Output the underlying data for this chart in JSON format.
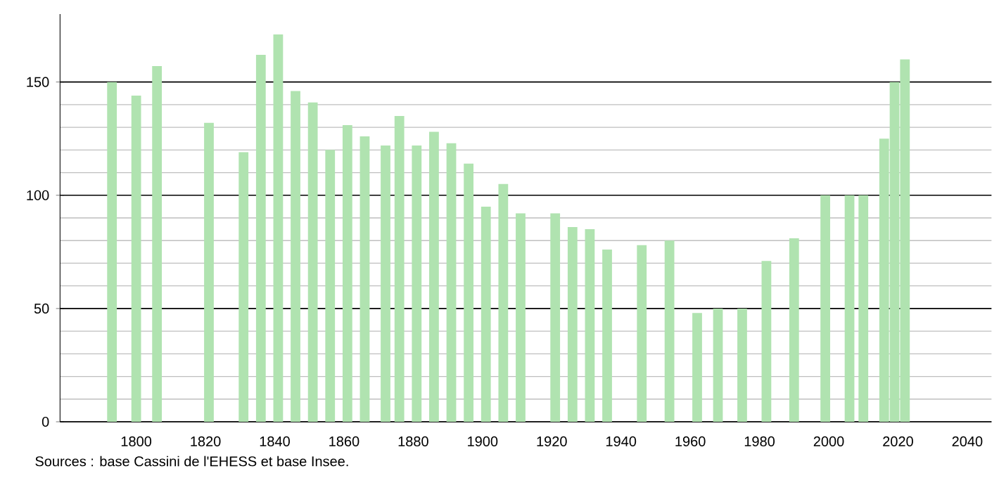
{
  "chart_data": {
    "type": "bar",
    "x": [
      1793,
      1800,
      1806,
      1821,
      1831,
      1836,
      1841,
      1846,
      1851,
      1856,
      1861,
      1866,
      1872,
      1876,
      1881,
      1886,
      1891,
      1896,
      1901,
      1906,
      1911,
      1921,
      1926,
      1931,
      1936,
      1946,
      1954,
      1962,
      1968,
      1975,
      1982,
      1990,
      1999,
      2006,
      2010,
      2016,
      2019,
      2022
    ],
    "values": [
      150,
      144,
      157,
      132,
      119,
      162,
      171,
      146,
      141,
      120,
      131,
      126,
      122,
      135,
      122,
      128,
      123,
      114,
      95,
      105,
      92,
      92,
      86,
      85,
      76,
      78,
      80,
      48,
      50,
      50,
      71,
      81,
      100,
      100,
      100,
      125,
      150,
      160
    ],
    "color": "#b0e3b0",
    "xlim": [
      1778,
      2047
    ],
    "ylim": [
      0,
      180
    ],
    "xticks": [
      1800,
      1820,
      1840,
      1860,
      1880,
      1900,
      1920,
      1940,
      1960,
      1980,
      2000,
      2020,
      2040
    ],
    "yticks": [
      0,
      50,
      100,
      150
    ],
    "grid": "y",
    "annotations": [
      "Sources : base Cassini de l'EHESS et base Insee."
    ]
  }
}
